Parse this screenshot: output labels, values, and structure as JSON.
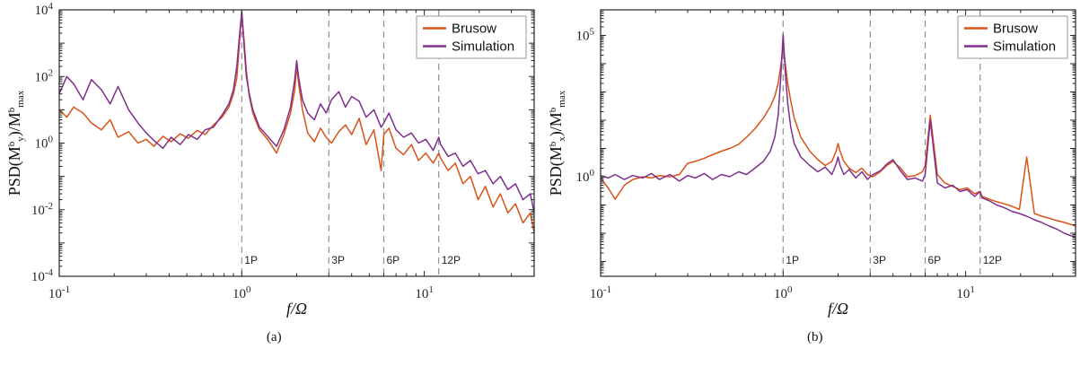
{
  "figure": {
    "caption_a": "(a)",
    "caption_b": "(b)",
    "background": "#ffffff",
    "accent_colors": {
      "brusow": "#D95319",
      "simulation": "#7E2F8E",
      "vline": "#909090"
    }
  },
  "chart_data": [
    {
      "id": "a",
      "type": "line",
      "title": "",
      "xlabel": "f/Ω",
      "ylabel": "PSD(M^b_y)/M^b_{max}",
      "xscale": "log",
      "yscale": "log",
      "grid": false,
      "xlim": [
        0.1,
        40
      ],
      "ylim": [
        0.0001,
        10000
      ],
      "xtick_exponents": [
        -1,
        0,
        1
      ],
      "ytick_exponents": [
        -4,
        -2,
        0,
        2,
        4
      ],
      "vlines": [
        {
          "x": 1,
          "label": "1P"
        },
        {
          "x": 3,
          "label": "3P"
        },
        {
          "x": 6,
          "label": "6P"
        },
        {
          "x": 12,
          "label": "12P"
        }
      ],
      "legend_position": "top-right",
      "x": [
        0.1,
        0.11,
        0.12,
        0.135,
        0.15,
        0.17,
        0.19,
        0.21,
        0.24,
        0.27,
        0.3,
        0.33,
        0.37,
        0.41,
        0.46,
        0.51,
        0.57,
        0.63,
        0.7,
        0.78,
        0.85,
        0.9,
        0.94,
        0.97,
        1.0,
        1.03,
        1.06,
        1.1,
        1.15,
        1.25,
        1.4,
        1.55,
        1.7,
        1.85,
        1.95,
        2.0,
        2.05,
        2.15,
        2.3,
        2.5,
        2.7,
        2.9,
        3.1,
        3.4,
        3.7,
        4.0,
        4.4,
        4.8,
        5.3,
        5.8,
        6.0,
        6.4,
        7.0,
        7.7,
        8.5,
        9.3,
        10.2,
        11.2,
        12.0,
        12.3,
        13.5,
        14.8,
        16.3,
        17.9,
        19.7,
        21.6,
        23.8,
        26.1,
        28.7,
        31.6,
        34.7,
        38.1,
        40.0
      ],
      "series": [
        {
          "name": "Brusow",
          "color": "#D95319",
          "y": [
            10,
            6,
            12,
            8,
            4,
            2.5,
            5,
            1.5,
            2.2,
            1.0,
            1.3,
            0.8,
            1.6,
            1.1,
            1.9,
            1.4,
            2.4,
            1.8,
            3.5,
            6,
            12,
            30,
            90,
            900,
            8000,
            1200,
            150,
            25,
            8,
            2.5,
            1.2,
            0.5,
            1.8,
            8,
            40,
            200,
            60,
            10,
            2.0,
            1.1,
            2.8,
            1.5,
            1.0,
            2.2,
            3.5,
            1.8,
            5.5,
            0.9,
            2.5,
            0.15,
            1.8,
            2.8,
            0.7,
            0.45,
            0.9,
            0.3,
            0.5,
            0.25,
            0.5,
            0.35,
            0.15,
            0.25,
            0.06,
            0.1,
            0.02,
            0.05,
            0.012,
            0.03,
            0.008,
            0.015,
            0.004,
            0.008,
            0.002
          ]
        },
        {
          "name": "Simulation",
          "color": "#7E2F8E",
          "y": [
            30,
            100,
            60,
            20,
            80,
            40,
            15,
            50,
            10,
            4,
            2,
            1.2,
            0.7,
            1.5,
            0.9,
            1.8,
            1.3,
            2.5,
            3,
            7,
            15,
            40,
            200,
            1500,
            9000,
            800,
            100,
            30,
            10,
            3,
            1.5,
            0.8,
            2.5,
            12,
            80,
            300,
            90,
            20,
            8,
            5,
            15,
            8,
            20,
            35,
            12,
            25,
            18,
            6,
            10,
            3,
            4,
            8,
            2.5,
            1.5,
            2.0,
            1.0,
            1.3,
            0.6,
            1.5,
            0.9,
            0.4,
            0.5,
            0.2,
            0.3,
            0.12,
            0.15,
            0.06,
            0.1,
            0.04,
            0.06,
            0.02,
            0.03,
            0.008
          ]
        }
      ]
    },
    {
      "id": "b",
      "type": "line",
      "title": "",
      "xlabel": "f/Ω",
      "ylabel": "PSD(M^b_x)/M^b_{max}",
      "xscale": "log",
      "yscale": "log",
      "grid": false,
      "xlim": [
        0.1,
        40
      ],
      "ylim": [
        0.0003,
        800000
      ],
      "xtick_exponents": [
        -1,
        0,
        1
      ],
      "ytick_exponents": [
        0,
        5
      ],
      "vlines": [
        {
          "x": 1,
          "label": "1P"
        },
        {
          "x": 3,
          "label": "3P"
        },
        {
          "x": 6,
          "label": "6P"
        },
        {
          "x": 12,
          "label": "12P"
        }
      ],
      "legend_position": "top-right",
      "x": [
        0.1,
        0.11,
        0.12,
        0.135,
        0.15,
        0.17,
        0.19,
        0.21,
        0.24,
        0.27,
        0.3,
        0.33,
        0.37,
        0.41,
        0.46,
        0.51,
        0.57,
        0.63,
        0.7,
        0.78,
        0.85,
        0.9,
        0.94,
        0.97,
        1.0,
        1.03,
        1.06,
        1.1,
        1.15,
        1.25,
        1.4,
        1.55,
        1.7,
        1.85,
        1.95,
        2.0,
        2.05,
        2.15,
        2.3,
        2.5,
        2.7,
        2.9,
        3.1,
        3.4,
        3.7,
        4.0,
        4.4,
        4.8,
        5.3,
        5.8,
        6.0,
        6.4,
        7.0,
        7.7,
        8.5,
        9.3,
        10.2,
        11.2,
        12.0,
        12.3,
        13.5,
        14.8,
        16.3,
        17.9,
        19.7,
        21.6,
        23.8,
        26.1,
        28.7,
        31.6,
        34.7,
        38.1,
        40.0
      ],
      "series": [
        {
          "name": "Brusow",
          "color": "#D95319",
          "y": [
            0.9,
            0.4,
            0.16,
            0.5,
            0.8,
            1.0,
            0.9,
            1.1,
            1.0,
            1.2,
            3,
            3.5,
            4.5,
            6,
            8,
            10,
            14,
            25,
            50,
            120,
            300,
            700,
            2000,
            8000,
            40000,
            9000,
            2000,
            500,
            120,
            25,
            8,
            4,
            2.5,
            3.5,
            8,
            15,
            8,
            3.5,
            2.0,
            1.4,
            2.0,
            1.2,
            1.0,
            1.5,
            2.5,
            3.5,
            2.0,
            1.0,
            1.1,
            1.5,
            2.5,
            150,
            1.2,
            0.6,
            0.45,
            0.35,
            0.4,
            0.25,
            0.3,
            0.2,
            0.16,
            0.13,
            0.11,
            0.09,
            0.07,
            5,
            0.05,
            0.04,
            0.034,
            0.028,
            0.024,
            0.02,
            0.018
          ]
        },
        {
          "name": "Simulation",
          "color": "#7E2F8E",
          "y": [
            1.1,
            0.9,
            1.2,
            0.8,
            1.1,
            0.9,
            1.3,
            0.8,
            1.2,
            0.7,
            1.1,
            0.9,
            1.3,
            0.8,
            1.2,
            1.0,
            1.5,
            1.2,
            2.0,
            3.5,
            8,
            25,
            150,
            3000,
            110000,
            4000,
            400,
            60,
            15,
            5,
            2.5,
            1.5,
            2.2,
            1.2,
            2.8,
            5,
            2.5,
            1.2,
            1.8,
            0.9,
            1.5,
            0.8,
            1.2,
            1.6,
            2.8,
            4,
            1.6,
            0.8,
            0.9,
            0.7,
            1.2,
            100,
            0.6,
            0.4,
            0.5,
            0.3,
            0.35,
            0.2,
            0.3,
            0.18,
            0.14,
            0.1,
            0.08,
            0.06,
            0.05,
            0.04,
            0.03,
            0.024,
            0.018,
            0.014,
            0.01,
            0.008,
            0.007
          ]
        }
      ]
    }
  ]
}
